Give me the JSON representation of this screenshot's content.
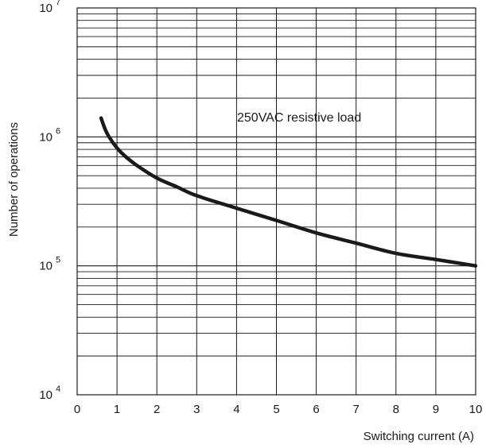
{
  "chart_data": {
    "type": "line",
    "xlabel": "Switching current (A)",
    "ylabel": "Number of operations",
    "xlim": [
      0,
      10
    ],
    "ylim": [
      10000,
      10000000
    ],
    "yscale": "log",
    "grid": true,
    "x_ticks": [
      "0",
      "1",
      "2",
      "3",
      "4",
      "5",
      "6",
      "7",
      "8",
      "9",
      "10"
    ],
    "y_ticks": [
      {
        "base": "10",
        "exp": "4"
      },
      {
        "base": "10",
        "exp": "5"
      },
      {
        "base": "10",
        "exp": "6"
      },
      {
        "base": "10",
        "exp": "7"
      }
    ],
    "annotation": "250VAC resistive load",
    "series": [
      {
        "x": [
          0.6,
          0.7,
          0.8,
          1.0,
          1.2,
          1.5,
          2.0,
          2.5,
          3.0,
          4.0,
          5.0,
          6.0,
          7.0,
          8.0,
          9.0,
          10.0
        ],
        "y": [
          1400000,
          1150000,
          1000000,
          820000,
          710000,
          600000,
          480000,
          410000,
          350000,
          280000,
          225000,
          180000,
          150000,
          125000,
          112000,
          100000
        ]
      }
    ],
    "line_color": "#1a1a1a",
    "grid_color": "#1a1a1a"
  }
}
